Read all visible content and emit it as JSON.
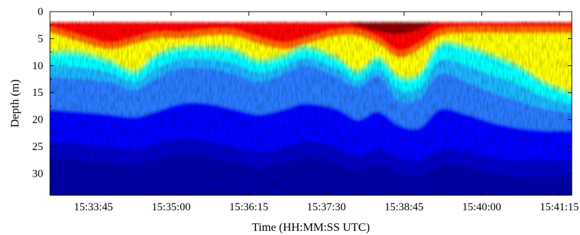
{
  "chart_data": {
    "type": "heatmap",
    "title": "",
    "xlabel": "Time (HH:MM:SS UTC)",
    "ylabel": "Depth (m)",
    "x_ticks": [
      "15:33:45",
      "15:35:00",
      "15:36:15",
      "15:37:30",
      "15:38:45",
      "15:40:00",
      "15:41:15"
    ],
    "x_range": [
      "15:33:03",
      "15:41:27"
    ],
    "y_ticks": [
      0,
      5,
      10,
      15,
      20,
      25,
      30
    ],
    "ylim": [
      0,
      34
    ],
    "y_inverted": true,
    "grid": false,
    "colormap": [
      "#00008f",
      "#0000ff",
      "#2a7bff",
      "#00ffff",
      "#ffff00",
      "#ff6a00",
      "#ff0000",
      "#8a0000"
    ],
    "colormap_note": "jet",
    "data_top_depth_m": 2.0,
    "layer_boundaries": {
      "description": "Depth (m) of intensity layer boundaries along the time axis; surface layer starts at data_top_depth_m",
      "time": [
        "15:33:03",
        "15:33:30",
        "15:34:00",
        "15:34:25",
        "15:34:45",
        "15:35:10",
        "15:35:35",
        "15:36:00",
        "15:36:25",
        "15:36:50",
        "15:37:10",
        "15:37:40",
        "15:38:00",
        "15:38:20",
        "15:38:40",
        "15:39:00",
        "15:39:20",
        "15:39:45",
        "15:40:10",
        "15:40:35",
        "15:41:00",
        "15:41:27"
      ],
      "red_to_yellow": [
        3.5,
        5.5,
        7.0,
        6.0,
        5.0,
        5.0,
        4.5,
        4.5,
        6.0,
        7.0,
        6.0,
        4.5,
        4.5,
        6.0,
        8.5,
        7.0,
        4.5,
        4.0,
        4.0,
        4.0,
        4.0,
        4.0
      ],
      "yellow_to_cyan": [
        8.0,
        8.0,
        9.5,
        11.5,
        8.5,
        7.0,
        7.0,
        7.5,
        9.5,
        8.5,
        7.0,
        9.0,
        11.5,
        9.0,
        12.5,
        12.0,
        6.5,
        7.0,
        8.5,
        10.5,
        13.5,
        16.0
      ],
      "cyan_to_blue": [
        12.0,
        12.5,
        13.0,
        14.5,
        12.5,
        10.5,
        10.5,
        11.5,
        13.0,
        11.5,
        10.0,
        12.0,
        14.0,
        12.0,
        16.5,
        16.0,
        11.5,
        13.0,
        15.0,
        16.5,
        18.0,
        19.0
      ],
      "blue_to_deep": [
        18.0,
        18.5,
        19.0,
        19.5,
        18.5,
        17.0,
        17.0,
        18.0,
        19.0,
        18.0,
        17.0,
        18.0,
        20.0,
        18.5,
        21.0,
        21.5,
        18.0,
        19.0,
        20.5,
        21.5,
        22.0,
        22.0
      ],
      "deep_to_darkest": [
        24.0,
        24.5,
        25.0,
        25.5,
        24.5,
        23.5,
        24.0,
        25.0,
        26.0,
        25.0,
        24.0,
        25.0,
        26.5,
        25.5,
        27.0,
        27.5,
        25.5,
        26.0,
        27.0,
        27.5,
        27.5,
        27.5
      ]
    }
  }
}
